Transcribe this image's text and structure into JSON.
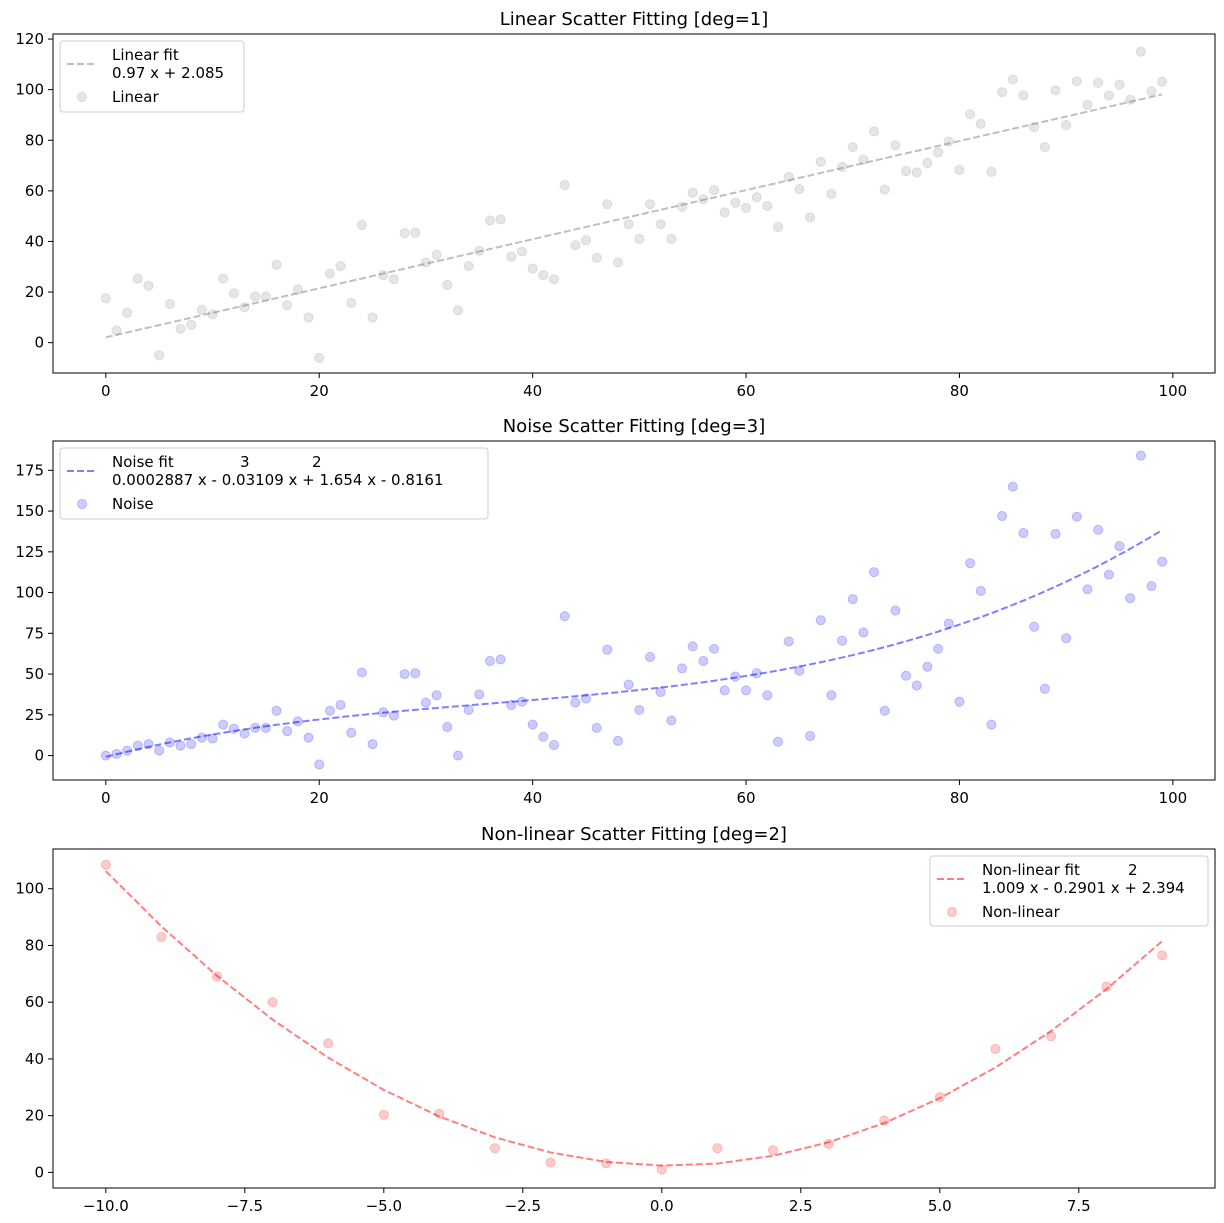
{
  "chart_data": [
    {
      "type": "scatter",
      "title": "Linear Scatter Fitting [deg=1]",
      "xlabel": "",
      "ylabel": "",
      "xlim": [
        -4.95,
        103.95
      ],
      "ylim": [
        -12,
        122
      ],
      "xticks": [
        0,
        20,
        40,
        60,
        80,
        100
      ],
      "xtick_labels": [
        "0",
        "20",
        "40",
        "60",
        "80",
        "100"
      ],
      "yticks": [
        0,
        20,
        40,
        60,
        80,
        100,
        120
      ],
      "ytick_labels": [
        "0",
        "20",
        "40",
        "60",
        "80",
        "100",
        "120"
      ],
      "grid": false,
      "legend_position": "top-left",
      "series": [
        {
          "name": "Linear",
          "kind": "scatter",
          "color": "#808080",
          "x": [
            0,
            1,
            2,
            3,
            4,
            5,
            6,
            7,
            8,
            9,
            10,
            11,
            12,
            13,
            14,
            15,
            16,
            17,
            18,
            19,
            20,
            21,
            22,
            23,
            24,
            25,
            26,
            27,
            28,
            29,
            30,
            31,
            32,
            33,
            34,
            35,
            36,
            37,
            38,
            39,
            40,
            41,
            42,
            43,
            44,
            45,
            46,
            47,
            48,
            49,
            50,
            51,
            52,
            53,
            54,
            55,
            56,
            57,
            58,
            59,
            60,
            61,
            62,
            63,
            64,
            65,
            66,
            67,
            68,
            69,
            70,
            71,
            72,
            73,
            74,
            75,
            76,
            77,
            78,
            79,
            80,
            81,
            82,
            83,
            84,
            85,
            86,
            87,
            88,
            89,
            90,
            91,
            92,
            93,
            94,
            95,
            96,
            97,
            98,
            99
          ],
          "y": [
            17.5,
            4.8,
            11.8,
            25.3,
            22.5,
            -5,
            15.3,
            5.5,
            7,
            13,
            11.2,
            25.3,
            19.5,
            14,
            18.3,
            18.3,
            30.8,
            14.8,
            21,
            10,
            -6,
            27.3,
            30.3,
            15.7,
            46.5,
            10,
            26.7,
            25,
            43.3,
            43.5,
            31.7,
            34.7,
            22.8,
            12.8,
            30.3,
            36.3,
            48.3,
            48.7,
            34,
            36,
            29.3,
            26.7,
            25,
            62.3,
            38.5,
            40.5,
            33.5,
            54.7,
            31.7,
            46.8,
            41,
            54.7,
            46.8,
            41,
            53.7,
            59.3,
            56.7,
            60.3,
            51.5,
            55.3,
            53.3,
            57.5,
            54,
            45.7,
            65.5,
            60.7,
            49.5,
            71.5,
            58.8,
            69.5,
            77.3,
            72.3,
            83.5,
            60.5,
            78,
            67.8,
            67.3,
            71,
            75.2,
            79.5,
            68.3,
            90.3,
            86.5,
            67.5,
            99,
            104,
            97.7,
            85.2,
            77.3,
            99.7,
            86,
            103.3,
            94,
            102.7,
            97.7,
            102,
            96,
            115,
            99.3,
            103.2
          ]
        },
        {
          "name": "Linear fit",
          "label_line2": "0.97 x + 2.085",
          "kind": "line",
          "style": "dashed",
          "color": "#808080",
          "x": [
            0,
            99
          ],
          "y": [
            2.085,
            98.115
          ]
        }
      ]
    },
    {
      "type": "scatter",
      "title": "Noise Scatter Fitting [deg=3]",
      "xlabel": "",
      "ylabel": "",
      "xlim": [
        -4.95,
        103.95
      ],
      "ylim": [
        -15,
        193
      ],
      "xticks": [
        0,
        20,
        40,
        60,
        80,
        100
      ],
      "xtick_labels": [
        "0",
        "20",
        "40",
        "60",
        "80",
        "100"
      ],
      "yticks": [
        0,
        25,
        50,
        75,
        100,
        125,
        150,
        175
      ],
      "ytick_labels": [
        "0",
        "25",
        "50",
        "75",
        "100",
        "125",
        "150",
        "175"
      ],
      "grid": false,
      "legend_position": "top-left",
      "series": [
        {
          "name": "Noise",
          "kind": "scatter",
          "color": "#0000ff",
          "x": [
            0,
            1,
            2,
            3,
            4,
            5,
            6,
            7,
            8,
            9,
            10,
            11,
            12,
            13,
            14,
            15,
            16,
            17,
            18,
            19,
            20,
            21,
            22,
            23,
            24,
            25,
            26,
            27,
            28,
            29,
            30,
            31,
            32,
            33,
            34,
            35,
            36,
            37,
            38,
            39,
            40,
            41,
            42,
            43,
            44,
            45,
            46,
            47,
            48,
            49,
            50,
            51,
            52,
            53,
            54,
            55,
            56,
            57,
            58,
            59,
            60,
            61,
            62,
            63,
            64,
            65,
            66,
            67,
            68,
            69,
            70,
            71,
            72,
            73,
            74,
            75,
            76,
            77,
            78,
            79,
            80,
            81,
            82,
            83,
            84,
            85,
            86,
            87,
            88,
            89,
            90,
            91,
            92,
            93,
            94,
            95,
            96,
            97,
            98,
            99
          ],
          "y": [
            0,
            1,
            3,
            6,
            7,
            3,
            8,
            6,
            7,
            11,
            10.5,
            19,
            16.5,
            13.5,
            17,
            17,
            27.5,
            15,
            21,
            11,
            -5.5,
            27.5,
            31,
            14,
            51,
            7,
            26.5,
            24.5,
            50,
            50.5,
            32.5,
            37,
            17.5,
            0,
            28,
            37.5,
            58,
            59,
            31,
            33,
            19,
            11.5,
            6.5,
            85.5,
            32.5,
            35,
            17,
            65,
            9,
            43.5,
            28,
            60.5,
            39,
            21.5,
            53.5,
            67,
            58,
            65.5,
            40,
            48.5,
            40,
            50.5,
            37,
            8.5,
            70,
            52,
            12,
            83,
            37,
            70.5,
            96,
            75.5,
            112.5,
            27.5,
            89,
            49,
            43,
            54.5,
            65.5,
            81,
            33,
            118,
            101,
            19,
            147,
            165,
            136.5,
            79,
            41,
            136,
            72,
            146.5,
            102,
            138.5,
            111,
            128.5,
            96.5,
            184,
            104,
            119
          ]
        },
        {
          "name": "Noise fit",
          "label_line2": "0.0002887 x - 0.03109 x + 1.654 x - 0.8161",
          "label_exponents": [
            "3",
            "2"
          ],
          "kind": "line",
          "style": "dashed",
          "color": "#0000ff",
          "poly": [
            0.0002887,
            -0.03109,
            1.654,
            -0.8161
          ],
          "x_range": [
            0,
            99
          ]
        }
      ]
    },
    {
      "type": "scatter",
      "title": "Non-linear Scatter Fitting [deg=2]",
      "xlabel": "",
      "ylabel": "",
      "xlim": [
        -10.95,
        9.95
      ],
      "ylim": [
        -5.5,
        114
      ],
      "xticks": [
        -10,
        -7.5,
        -5,
        -2.5,
        0,
        2.5,
        5,
        7.5
      ],
      "xtick_labels": [
        "−10.0",
        "−7.5",
        "−5.0",
        "−2.5",
        "0.0",
        "2.5",
        "5.0",
        "7.5"
      ],
      "yticks": [
        0,
        20,
        40,
        60,
        80,
        100
      ],
      "ytick_labels": [
        "0",
        "20",
        "40",
        "60",
        "80",
        "100"
      ],
      "grid": false,
      "legend_position": "top-right",
      "series": [
        {
          "name": "Non-linear",
          "kind": "scatter",
          "color": "#ff0000",
          "x": [
            -10,
            -9,
            -8,
            -7,
            -6,
            -5,
            -4,
            -3,
            -2,
            -1,
            0,
            1,
            2,
            3,
            4,
            5,
            6,
            7,
            8,
            9
          ],
          "y": [
            108.5,
            83,
            69,
            60,
            45.5,
            20.3,
            20.7,
            8.5,
            3.5,
            3.2,
            1,
            8.5,
            7.8,
            10,
            18.3,
            26.5,
            43.5,
            48,
            65.5,
            76.5
          ]
        },
        {
          "name": "Non-linear fit",
          "label_line2": "1.009 x - 0.2901 x + 2.394",
          "label_exponents": [
            "2"
          ],
          "kind": "line",
          "style": "dashed",
          "color": "#ff0000",
          "poly": [
            1.009,
            -0.2901,
            2.394
          ],
          "x_points": [
            -10,
            -9,
            -8,
            -7,
            -6,
            -5,
            -4,
            -3,
            -2,
            -1,
            0,
            1,
            2,
            3,
            4,
            5,
            6,
            7,
            8,
            9
          ]
        }
      ]
    }
  ]
}
